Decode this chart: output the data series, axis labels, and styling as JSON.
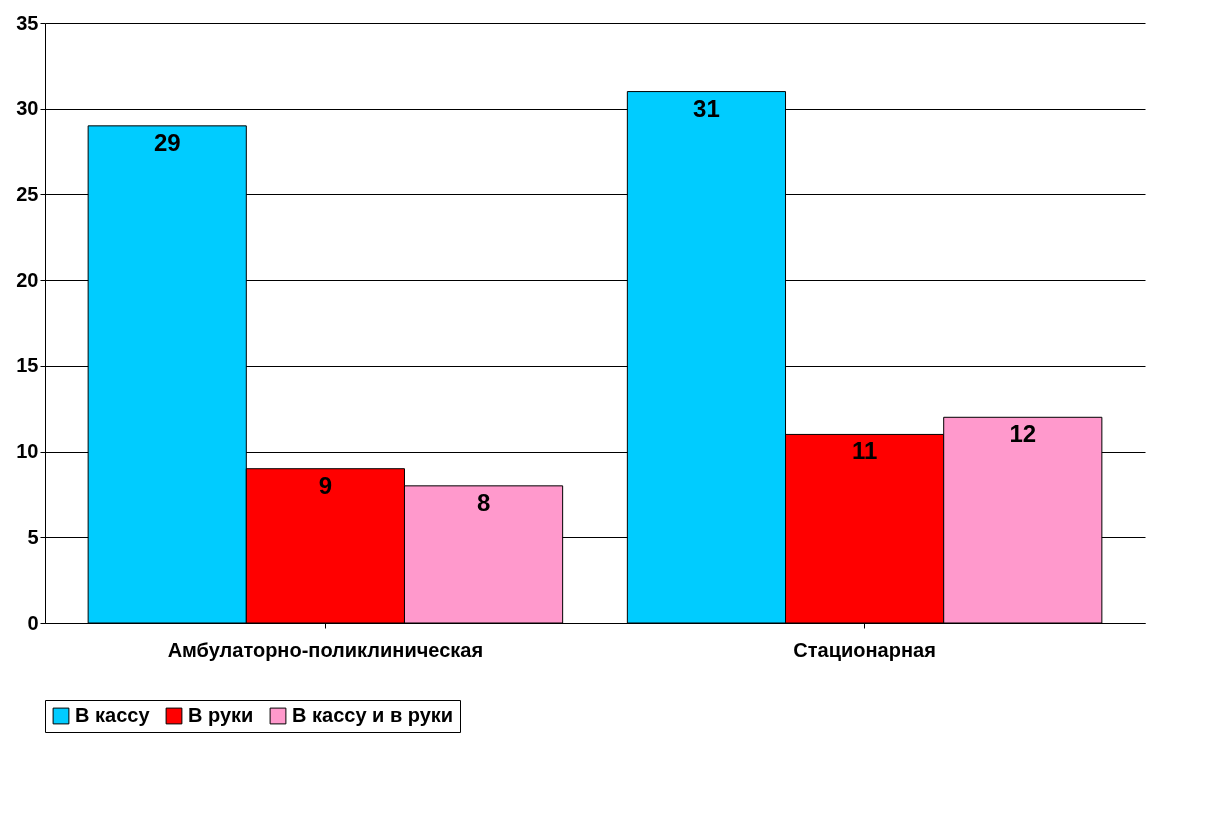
{
  "chart_data": {
    "type": "bar",
    "categories": [
      "Амбулаторно-поликлиническая",
      "Стационарная"
    ],
    "series": [
      {
        "name": "В кассу",
        "color": "#00ccff",
        "values": [
          29,
          31
        ]
      },
      {
        "name": "В руки",
        "color": "#ff0000",
        "values": [
          9,
          11
        ]
      },
      {
        "name": "В кассу и в руки",
        "color": "#ff99cc",
        "values": [
          8,
          12
        ]
      }
    ],
    "ylim": [
      0,
      35
    ],
    "yticks": [
      0,
      5,
      10,
      15,
      20,
      25,
      30,
      35
    ],
    "grid": "y",
    "legend": "bottom",
    "data_labels": true
  }
}
